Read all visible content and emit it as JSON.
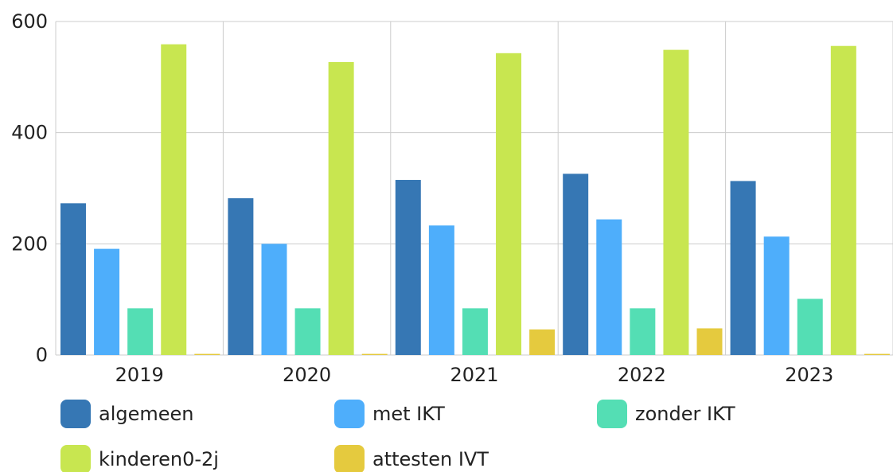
{
  "chart_data": {
    "type": "bar",
    "title": "",
    "xlabel": "",
    "ylabel": "",
    "categories": [
      "2019",
      "2020",
      "2021",
      "2022",
      "2023"
    ],
    "ylim": [
      0,
      600
    ],
    "yticks": [
      "0",
      "200",
      "400",
      "600"
    ],
    "grid": true,
    "legend_position": "bottom",
    "series": [
      {
        "name": "algemeen",
        "color": "#3677b4",
        "values": [
          273,
          282,
          315,
          326,
          313
        ]
      },
      {
        "name": "met IKT",
        "color": "#4eaefb",
        "values": [
          191,
          200,
          233,
          244,
          213
        ]
      },
      {
        "name": "zonder IKT",
        "color": "#54deb4",
        "values": [
          84,
          84,
          84,
          84,
          101
        ]
      },
      {
        "name": "kinderen0-2j",
        "color": "#c8e650",
        "values": [
          559,
          527,
          543,
          549,
          556
        ]
      },
      {
        "name": "attesten IVT",
        "color": "#e5ca3e",
        "values": [
          2,
          2,
          46,
          48,
          2
        ]
      }
    ]
  }
}
